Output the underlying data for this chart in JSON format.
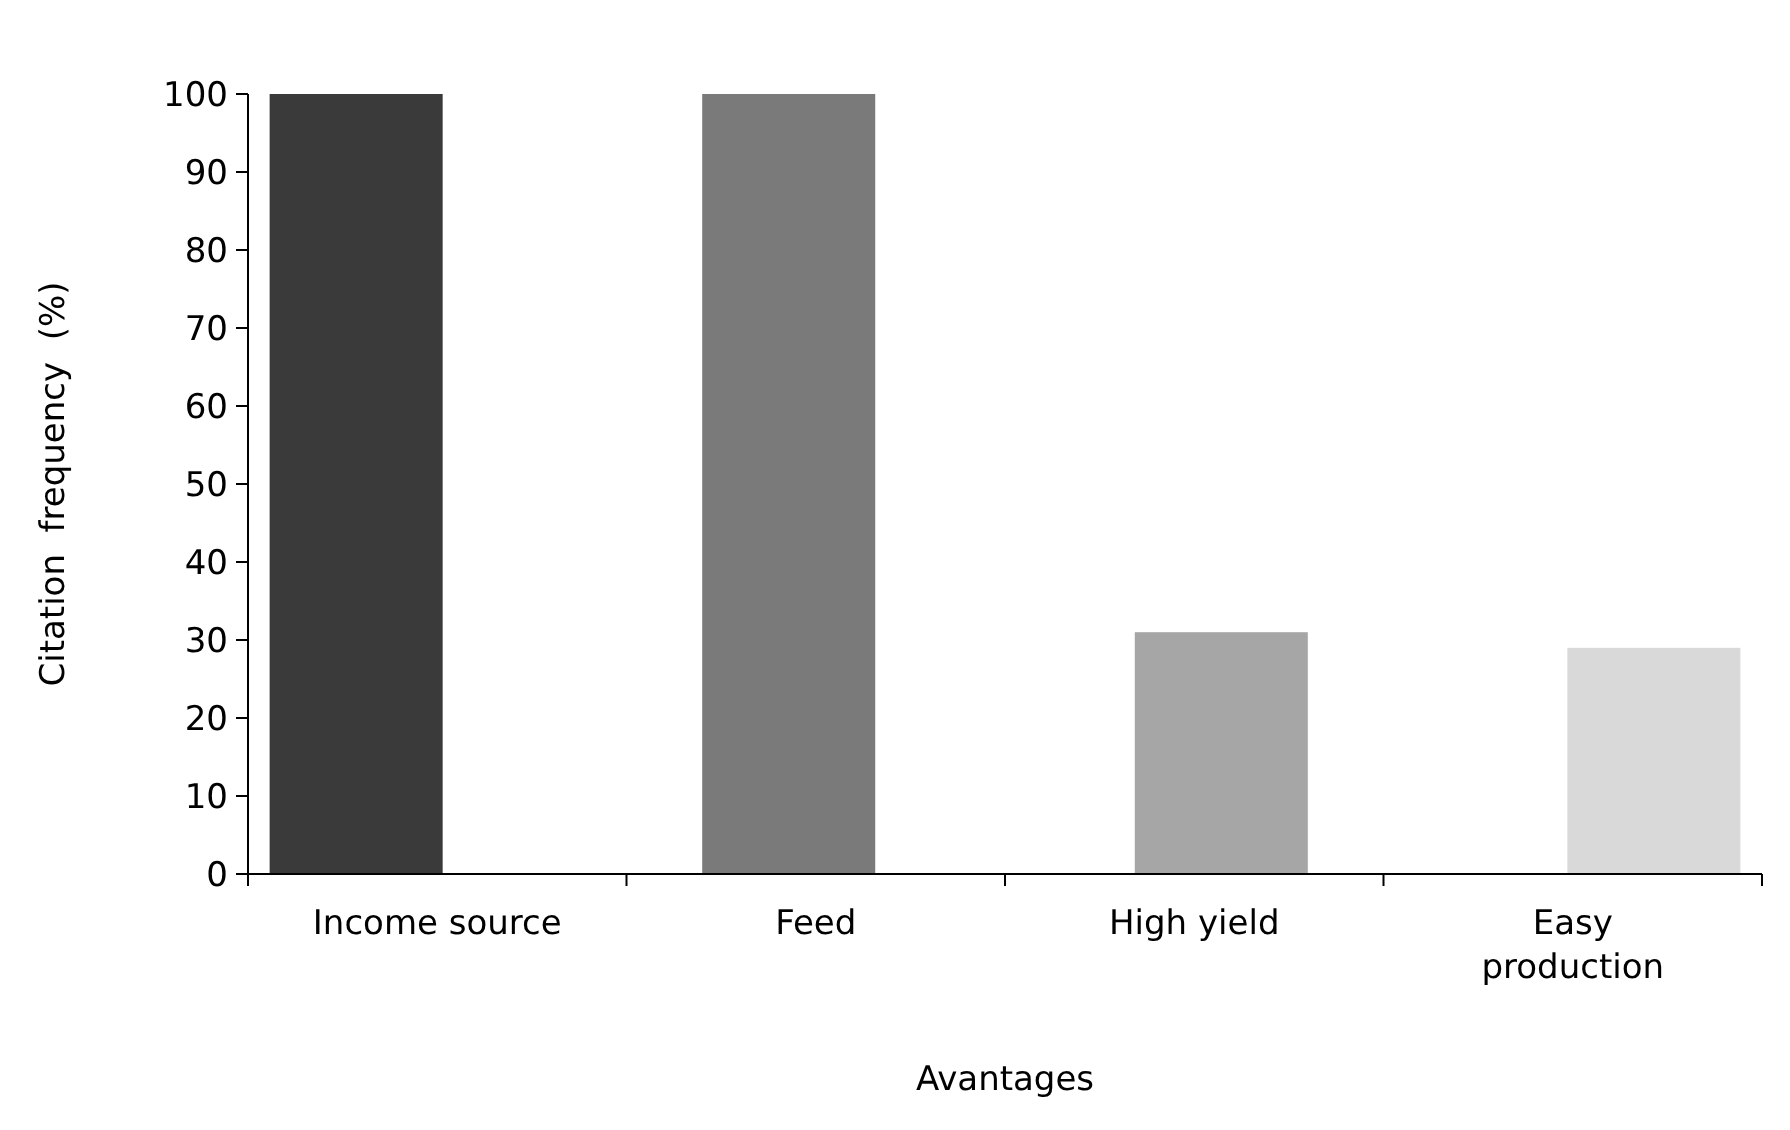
{
  "chart_data": {
    "type": "bar",
    "xlabel": "Avantages",
    "ylabel": "Citation  frequency  (%)",
    "categories": [
      "Income source",
      "Feed",
      "High yield",
      "Easy production"
    ],
    "values": [
      100,
      100,
      31,
      29
    ],
    "colors": [
      "#3a3a3a",
      "#7a7a7a",
      "#a6a6a6",
      "#d9d9d9"
    ],
    "ylim": [
      0,
      100
    ],
    "yticks": [
      0,
      10,
      20,
      30,
      40,
      50,
      60,
      70,
      80,
      90,
      100
    ],
    "grid": false
  }
}
